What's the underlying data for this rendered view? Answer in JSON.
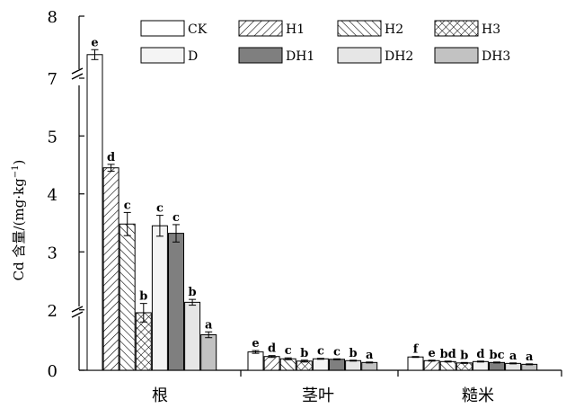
{
  "chart_data": {
    "type": "bar",
    "ylabel": "Cd 含量/(mg·kg",
    "ylabel_sup": "−1",
    "ylabel_close": ")",
    "categories": [
      "根",
      "茎叶",
      "糙米"
    ],
    "series": [
      {
        "name": "CK",
        "color": "#ffffff",
        "pattern": "none"
      },
      {
        "name": "H1",
        "color": "#ffffff",
        "pattern": "fwd"
      },
      {
        "name": "H2",
        "color": "#ffffff",
        "pattern": "back"
      },
      {
        "name": "H3",
        "color": "#ffffff",
        "pattern": "cross"
      },
      {
        "name": "D",
        "color": "#f4f4f4",
        "pattern": "none"
      },
      {
        "name": "DH1",
        "color": "#7f7f7f",
        "pattern": "none"
      },
      {
        "name": "DH2",
        "color": "#e6e6e6",
        "pattern": "none"
      },
      {
        "name": "DH3",
        "color": "#c2c2c2",
        "pattern": "none"
      }
    ],
    "values": [
      [
        7.38,
        4.45,
        3.48,
        1.95,
        3.45,
        3.32,
        2.13,
        1.57
      ],
      [
        0.4,
        0.3,
        0.25,
        0.2,
        0.25,
        0.24,
        0.21,
        0.17
      ],
      [
        0.29,
        0.21,
        0.19,
        0.16,
        0.19,
        0.17,
        0.15,
        0.13
      ]
    ],
    "errors": [
      [
        0.08,
        0.06,
        0.2,
        0.16,
        0.18,
        0.15,
        0.05,
        0.05
      ],
      [
        0.03,
        0.02,
        0.02,
        0.02,
        0.01,
        0.01,
        0.01,
        0.01
      ],
      [
        0.01,
        0.01,
        0.01,
        0.01,
        0.01,
        0.01,
        0.01,
        0.01
      ]
    ],
    "sig_letters": [
      [
        "e",
        "d",
        "c",
        "b",
        "c",
        "c",
        "b",
        "a"
      ],
      [
        "e",
        "d",
        "c",
        "b",
        "c",
        "c",
        "b",
        "a"
      ],
      [
        "f",
        "e",
        "bd",
        "b",
        "d",
        "bc",
        "a",
        "a"
      ]
    ],
    "y_ticks": [
      0,
      2,
      3,
      4,
      5,
      7,
      8
    ],
    "y_ticks_labels": [
      "0",
      "2",
      "3",
      "4",
      "5",
      "7",
      "8"
    ],
    "axis_breaks": [
      "0.6–1.5",
      "5.4–6.9"
    ],
    "legend_position": "top"
  }
}
